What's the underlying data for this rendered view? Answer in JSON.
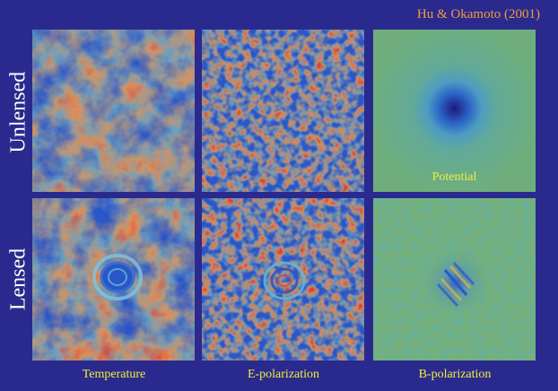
{
  "credit": "Hu & Okamoto (2001)",
  "rows": {
    "unlensed": "Unlensed",
    "lensed": "Lensed"
  },
  "columns": {
    "temperature": "Temperature",
    "e_polarization": "E-polarization",
    "b_polarization": "B-polarization"
  },
  "potential_label": "Potential",
  "colors": {
    "background": "#2a2a8e",
    "map_blue": "#2b56c8",
    "map_cyan": "#5fb8d8",
    "map_tan": "#d9a86a",
    "map_red": "#e23a2a",
    "potential_bg": "#6fae7c",
    "label_yellow": "#f2ee3a",
    "credit_orange": "#f39a3a"
  }
}
